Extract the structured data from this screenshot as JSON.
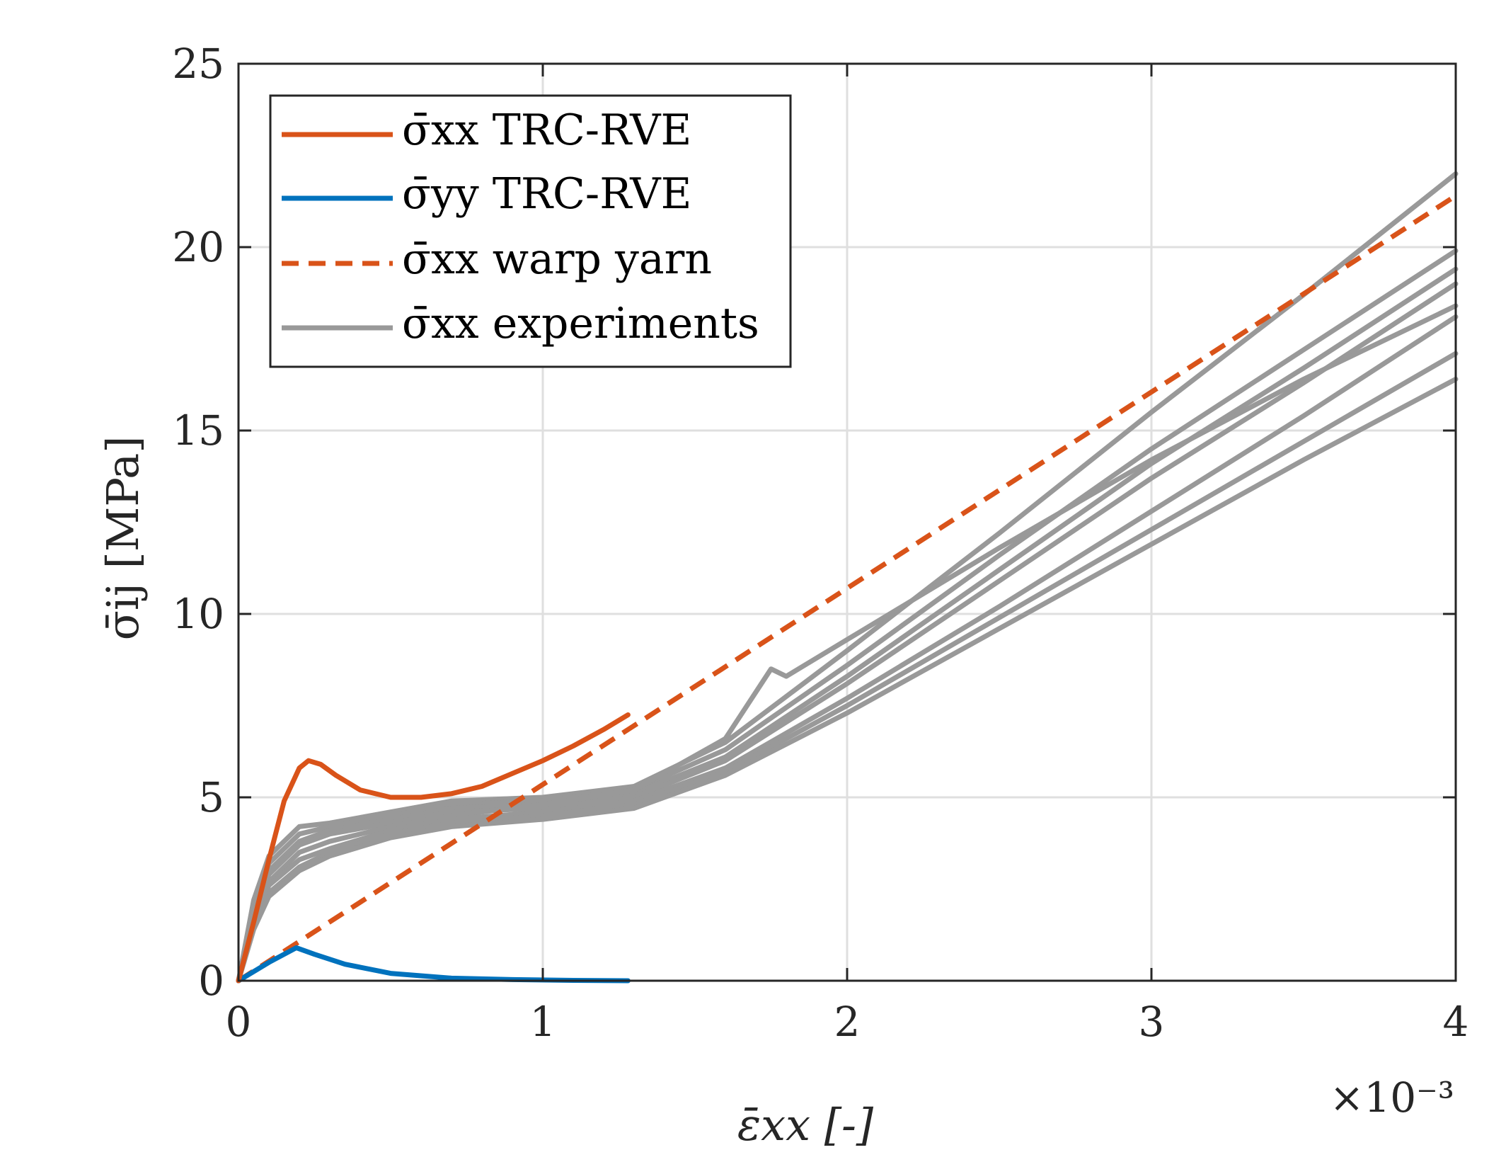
{
  "chart_data": {
    "type": "line",
    "title": "",
    "xlabel": "ε̄xx [-]",
    "ylabel": "σ̄ij [MPa]",
    "x_multiplier": "×10⁻³",
    "xlim": [
      0,
      4
    ],
    "ylim": [
      0,
      25
    ],
    "x_ticks": [
      "0",
      "1",
      "2",
      "3",
      "4"
    ],
    "y_ticks": [
      "0",
      "5",
      "10",
      "15",
      "20",
      "25"
    ],
    "grid": true,
    "legend_position": "top-left",
    "series": [
      {
        "name": "σ̄xx TRC-RVE",
        "legend_label": "σ̄xx  TRC-RVE",
        "color": "#D95319",
        "style": "solid",
        "x": [
          0,
          0.05,
          0.1,
          0.15,
          0.2,
          0.23,
          0.27,
          0.32,
          0.4,
          0.5,
          0.6,
          0.7,
          0.8,
          0.9,
          1.0,
          1.1,
          1.2,
          1.28
        ],
        "y": [
          0,
          1.6,
          3.3,
          4.9,
          5.8,
          6.0,
          5.9,
          5.6,
          5.2,
          5.0,
          5.0,
          5.1,
          5.3,
          5.65,
          6.0,
          6.4,
          6.85,
          7.25
        ]
      },
      {
        "name": "σ̄yy TRC-RVE",
        "legend_label": "σ̄yy  TRC-RVE",
        "color": "#0072BD",
        "style": "solid",
        "x": [
          0,
          0.1,
          0.19,
          0.25,
          0.35,
          0.5,
          0.7,
          0.9,
          1.1,
          1.28
        ],
        "y": [
          0,
          0.5,
          0.9,
          0.72,
          0.45,
          0.2,
          0.07,
          0.03,
          0.01,
          0.0
        ]
      },
      {
        "name": "σ̄xx warp yarn",
        "legend_label": "σ̄xx  warp yarn",
        "color": "#D95319",
        "style": "dashed",
        "x": [
          0,
          4
        ],
        "y": [
          0,
          21.4
        ]
      },
      {
        "name": "σ̄xx experiments",
        "legend_label": "σ̄xx  experiments",
        "color": "#999999",
        "style": "solid",
        "curves": [
          {
            "x": [
              0,
              0.05,
              0.1,
              0.2,
              0.3,
              0.5,
              0.7,
              1.0,
              1.3,
              1.6,
              2.0,
              2.5,
              3.0,
              3.5,
              4.0
            ],
            "y": [
              0,
              2.2,
              3.4,
              4.2,
              4.3,
              4.6,
              4.9,
              5.0,
              5.3,
              6.5,
              9.0,
              12.2,
              15.5,
              18.7,
              22.0
            ]
          },
          {
            "x": [
              0,
              0.05,
              0.1,
              0.2,
              0.3,
              0.5,
              0.7,
              1.0,
              1.3,
              1.6,
              2.0,
              2.5,
              3.0,
              3.5,
              4.0
            ],
            "y": [
              0,
              2.0,
              3.2,
              4.0,
              4.2,
              4.5,
              4.8,
              4.9,
              5.2,
              6.3,
              8.6,
              11.6,
              14.5,
              17.2,
              19.9
            ]
          },
          {
            "x": [
              0,
              0.05,
              0.1,
              0.2,
              0.3,
              0.5,
              0.7,
              1.0,
              1.3,
              1.6,
              2.0,
              2.5,
              3.0,
              3.5,
              4.0
            ],
            "y": [
              0,
              1.9,
              3.0,
              3.8,
              4.1,
              4.4,
              4.7,
              4.8,
              5.1,
              6.1,
              8.3,
              11.2,
              14.1,
              16.7,
              19.4
            ]
          },
          {
            "x": [
              0,
              0.05,
              0.1,
              0.2,
              0.3,
              0.5,
              0.7,
              1.0,
              1.3,
              1.6,
              2.0,
              2.5,
              3.0,
              3.5,
              4.0
            ],
            "y": [
              0,
              1.8,
              2.9,
              3.7,
              4.0,
              4.3,
              4.6,
              4.7,
              5.0,
              6.0,
              8.1,
              10.9,
              13.7,
              16.3,
              19.0
            ]
          },
          {
            "x": [
              0,
              0.05,
              0.1,
              0.2,
              0.3,
              0.5,
              0.7,
              1.0,
              1.3,
              1.6,
              1.75,
              1.8,
              2.0,
              2.5,
              3.0,
              3.5,
              4.0
            ],
            "y": [
              0,
              1.7,
              2.7,
              3.5,
              3.8,
              4.2,
              4.5,
              4.8,
              5.2,
              6.6,
              8.5,
              8.3,
              9.3,
              11.8,
              14.2,
              16.4,
              18.4
            ]
          },
          {
            "x": [
              0,
              0.05,
              0.1,
              0.2,
              0.3,
              0.5,
              0.7,
              1.0,
              1.3,
              1.6,
              2.0,
              2.5,
              3.0,
              3.5,
              4.0
            ],
            "y": [
              0,
              1.6,
              2.6,
              3.3,
              3.6,
              4.1,
              4.4,
              4.6,
              4.9,
              5.8,
              7.7,
              10.2,
              12.8,
              15.4,
              18.1
            ]
          },
          {
            "x": [
              0,
              0.05,
              0.1,
              0.2,
              0.3,
              0.5,
              0.7,
              1.0,
              1.3,
              1.6,
              2.0,
              2.5,
              3.0,
              3.5,
              4.0
            ],
            "y": [
              0,
              1.5,
              2.4,
              3.1,
              3.5,
              4.0,
              4.3,
              4.5,
              4.8,
              5.7,
              7.5,
              9.9,
              12.3,
              14.7,
              17.1
            ]
          },
          {
            "x": [
              0,
              0.05,
              0.1,
              0.2,
              0.3,
              0.5,
              0.7,
              1.0,
              1.3,
              1.6,
              2.0,
              2.5,
              3.0,
              3.5,
              4.0
            ],
            "y": [
              0,
              1.4,
              2.3,
              3.0,
              3.4,
              3.9,
              4.2,
              4.4,
              4.7,
              5.6,
              7.3,
              9.6,
              11.9,
              14.2,
              16.4
            ]
          }
        ]
      }
    ]
  }
}
